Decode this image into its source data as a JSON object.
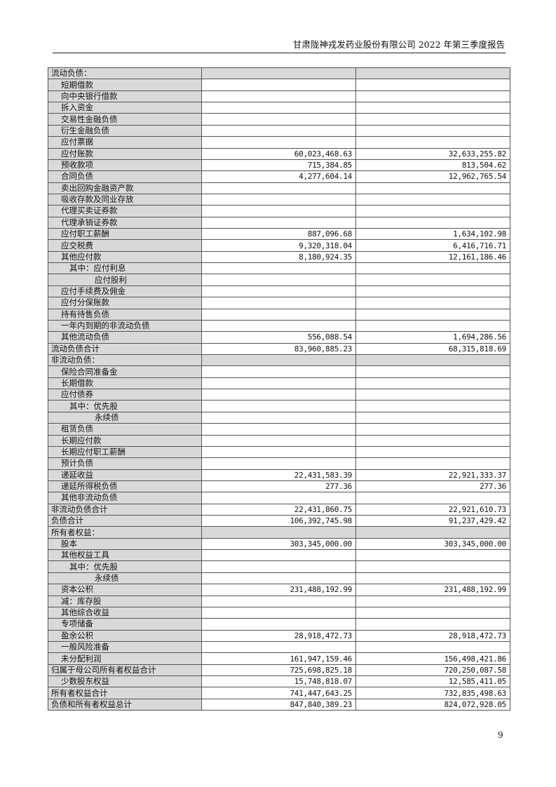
{
  "header": {
    "title": "甘肃陇神戎发药业股份有限公司 2022 年第三季度报告"
  },
  "page_number": "9",
  "table": {
    "rows": [
      {
        "label": "流动负债：",
        "level": 0,
        "section": true,
        "current": "",
        "previous": ""
      },
      {
        "label": "短期借款",
        "level": 1,
        "current": "",
        "previous": ""
      },
      {
        "label": "向中央银行借款",
        "level": 1,
        "current": "",
        "previous": ""
      },
      {
        "label": "拆入资金",
        "level": 1,
        "current": "",
        "previous": ""
      },
      {
        "label": "交易性金融负债",
        "level": 1,
        "current": "",
        "previous": ""
      },
      {
        "label": "衍生金融负债",
        "level": 1,
        "current": "",
        "previous": ""
      },
      {
        "label": "应付票据",
        "level": 1,
        "current": "",
        "previous": ""
      },
      {
        "label": "应付账款",
        "level": 1,
        "current": "60,023,468.63",
        "previous": "32,633,255.82"
      },
      {
        "label": "预收款项",
        "level": 1,
        "current": "715,384.85",
        "previous": "813,504.62"
      },
      {
        "label": "合同负债",
        "level": 1,
        "current": "4,277,604.14",
        "previous": "12,962,765.54"
      },
      {
        "label": "卖出回购金融资产款",
        "level": 1,
        "current": "",
        "previous": ""
      },
      {
        "label": "吸收存款及同业存放",
        "level": 1,
        "current": "",
        "previous": ""
      },
      {
        "label": "代理买卖证券款",
        "level": 1,
        "current": "",
        "previous": ""
      },
      {
        "label": "代理承销证券款",
        "level": 1,
        "current": "",
        "previous": ""
      },
      {
        "label": "应付职工薪酬",
        "level": 1,
        "current": "887,096.68",
        "previous": "1,634,102.98"
      },
      {
        "label": "应交税费",
        "level": 1,
        "current": "9,320,318.04",
        "previous": "6,416,716.71"
      },
      {
        "label": "其他应付款",
        "level": 1,
        "current": "8,180,924.35",
        "previous": "12,161,186.46"
      },
      {
        "label": "其中：应付利息",
        "level": 2,
        "current": "",
        "previous": ""
      },
      {
        "label": "应付股利",
        "level": 3,
        "current": "",
        "previous": ""
      },
      {
        "label": "应付手续费及佣金",
        "level": 1,
        "current": "",
        "previous": ""
      },
      {
        "label": "应付分保账款",
        "level": 1,
        "current": "",
        "previous": ""
      },
      {
        "label": "持有待售负债",
        "level": 1,
        "current": "",
        "previous": ""
      },
      {
        "label": "一年内到期的非流动负债",
        "level": 1,
        "current": "",
        "previous": ""
      },
      {
        "label": "其他流动负债",
        "level": 1,
        "current": "556,088.54",
        "previous": "1,694,286.56"
      },
      {
        "label": "流动负债合计",
        "level": 0,
        "current": "83,960,885.23",
        "previous": "68,315,818.69"
      },
      {
        "label": "非流动负债：",
        "level": 0,
        "section": true,
        "current": "",
        "previous": ""
      },
      {
        "label": "保险合同准备金",
        "level": 1,
        "current": "",
        "previous": ""
      },
      {
        "label": "长期借款",
        "level": 1,
        "current": "",
        "previous": ""
      },
      {
        "label": "应付债券",
        "level": 1,
        "current": "",
        "previous": ""
      },
      {
        "label": "其中：优先股",
        "level": 2,
        "current": "",
        "previous": ""
      },
      {
        "label": "永续债",
        "level": 3,
        "current": "",
        "previous": ""
      },
      {
        "label": "租赁负债",
        "level": 1,
        "current": "",
        "previous": ""
      },
      {
        "label": "长期应付款",
        "level": 1,
        "current": "",
        "previous": ""
      },
      {
        "label": "长期应付职工薪酬",
        "level": 1,
        "current": "",
        "previous": ""
      },
      {
        "label": "预计负债",
        "level": 1,
        "current": "",
        "previous": ""
      },
      {
        "label": "递延收益",
        "level": 1,
        "current": "22,431,583.39",
        "previous": "22,921,333.37"
      },
      {
        "label": "递延所得税负债",
        "level": 1,
        "current": "277.36",
        "previous": "277.36"
      },
      {
        "label": "其他非流动负债",
        "level": 1,
        "current": "",
        "previous": ""
      },
      {
        "label": "非流动负债合计",
        "level": 0,
        "current": "22,431,860.75",
        "previous": "22,921,610.73"
      },
      {
        "label": "负债合计",
        "level": 0,
        "current": "106,392,745.98",
        "previous": "91,237,429.42"
      },
      {
        "label": "所有者权益：",
        "level": 0,
        "section": true,
        "current": "",
        "previous": ""
      },
      {
        "label": "股本",
        "level": 1,
        "current": "303,345,000.00",
        "previous": "303,345,000.00"
      },
      {
        "label": "其他权益工具",
        "level": 1,
        "current": "",
        "previous": ""
      },
      {
        "label": "其中：优先股",
        "level": 2,
        "current": "",
        "previous": ""
      },
      {
        "label": "永续债",
        "level": 3,
        "current": "",
        "previous": ""
      },
      {
        "label": "资本公积",
        "level": 1,
        "current": "231,488,192.99",
        "previous": "231,488,192.99"
      },
      {
        "label": "减：库存股",
        "level": 1,
        "current": "",
        "previous": ""
      },
      {
        "label": "其他综合收益",
        "level": 1,
        "current": "",
        "previous": ""
      },
      {
        "label": "专项储备",
        "level": 1,
        "current": "",
        "previous": ""
      },
      {
        "label": "盈余公积",
        "level": 1,
        "current": "28,918,472.73",
        "previous": "28,918,472.73"
      },
      {
        "label": "一般风险准备",
        "level": 1,
        "current": "",
        "previous": ""
      },
      {
        "label": "未分配利润",
        "level": 1,
        "current": "161,947,159.46",
        "previous": "156,498,421.86"
      },
      {
        "label": "归属于母公司所有者权益合计",
        "level": 0,
        "current": "725,698,825.18",
        "previous": "720,250,087.58"
      },
      {
        "label": "少数股东权益",
        "level": 1,
        "current": "15,748,818.07",
        "previous": "12,585,411.05"
      },
      {
        "label": "所有者权益合计",
        "level": 0,
        "current": "741,447,643.25",
        "previous": "732,835,498.63"
      },
      {
        "label": "负债和所有者权益总计",
        "level": 0,
        "current": "847,840,389.23",
        "previous": "824,072,928.05"
      }
    ]
  }
}
